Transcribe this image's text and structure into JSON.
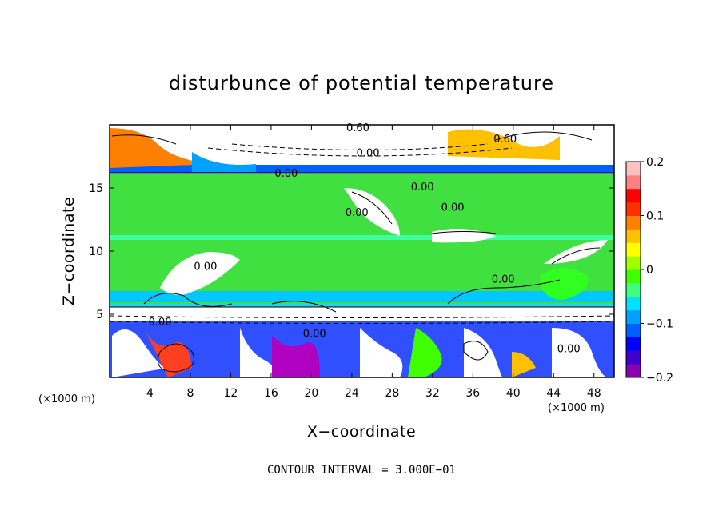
{
  "chart_data": {
    "type": "heatmap",
    "title": "disturbunce of potential temperature",
    "xlabel": "X−coordinate",
    "ylabel": "Z−coordinate",
    "x_unit": "(×1000 m)",
    "x_unit_right": "(×1000 m)",
    "xlim": [
      0,
      50
    ],
    "ylim": [
      0,
      20
    ],
    "x_ticks": [
      4,
      8,
      12,
      16,
      20,
      24,
      28,
      32,
      36,
      40,
      44,
      48
    ],
    "x_tick_labels": [
      "4",
      "8",
      "12",
      "16",
      "20",
      "24",
      "28",
      "32",
      "36",
      "40",
      "44",
      "48"
    ],
    "y_ticks": [
      5,
      10,
      15
    ],
    "y_tick_labels": [
      "5",
      "10",
      "15"
    ],
    "colorbar": {
      "range": [
        -0.2,
        0.2
      ],
      "ticks": [
        0.2,
        0.1,
        0,
        -0.1,
        -0.2
      ],
      "tick_labels": [
        "0.2",
        "0.1",
        "0",
        "−0.1",
        "−0.2"
      ],
      "colors": [
        "#8a00b0",
        "#4000d0",
        "#0000ff",
        "#0060ff",
        "#00a0ff",
        "#00e0ff",
        "#40ff80",
        "#40ff00",
        "#a0ff00",
        "#ffff00",
        "#ffc000",
        "#ff8000",
        "#ff3000",
        "#ff0000",
        "#ff8080",
        "#ffc0c0"
      ]
    },
    "contour_labels": [
      {
        "text": "0.60",
        "x": 24.6,
        "y": 19.5
      },
      {
        "text": "0.60",
        "x": 39.2,
        "y": 18.6
      },
      {
        "text": "0.00",
        "x": 25.6,
        "y": 17.5
      },
      {
        "text": "0.00",
        "x": 17.5,
        "y": 15.9
      },
      {
        "text": "0.00",
        "x": 31.0,
        "y": 14.8
      },
      {
        "text": "0.00",
        "x": 34.0,
        "y": 13.2
      },
      {
        "text": "0.00",
        "x": 24.5,
        "y": 12.8
      },
      {
        "text": "0.00",
        "x": 9.5,
        "y": 8.5
      },
      {
        "text": "0.00",
        "x": 39.0,
        "y": 7.5
      },
      {
        "text": "0.00",
        "x": 5.0,
        "y": 4.1
      },
      {
        "text": "0.00",
        "x": 20.3,
        "y": 3.2
      },
      {
        "text": "0.00",
        "x": 45.5,
        "y": 2.0
      }
    ],
    "footer": "CONTOUR INTERVAL = 3.000E−01"
  }
}
